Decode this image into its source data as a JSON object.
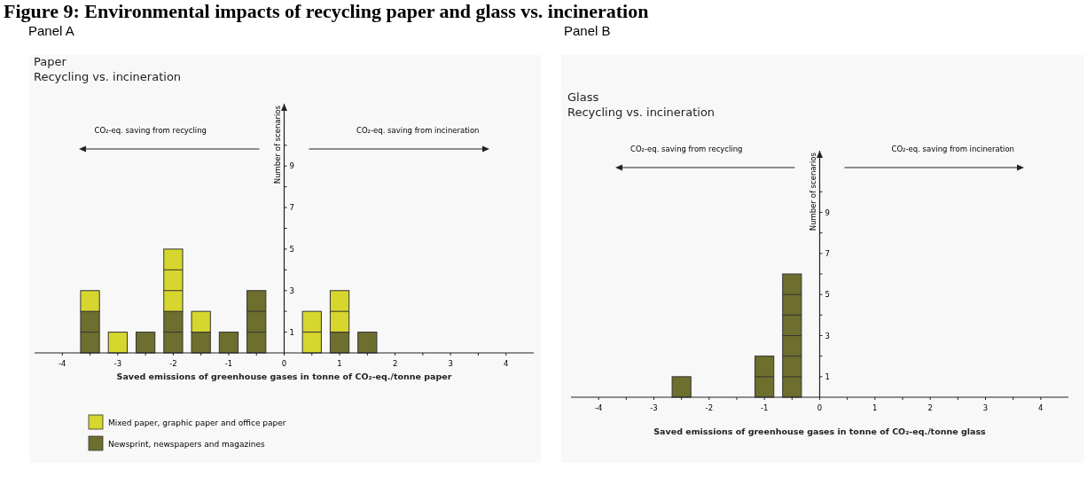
{
  "chart_data": [
    {
      "type": "bar",
      "title": "Paper",
      "subtitle": "Recycling vs. incineration",
      "xlabel": "Saved emissions of greenhouse gases in tonne of CO₂-eq./tonne paper",
      "ylabel": "Number of scenarios",
      "annotations": [
        "Figure 9: Environmental impacts of recycling paper and glass vs. incineration",
        "Panel A",
        "CO₂-eq. saving from recycling",
        "CO₂-eq. saving from incineration"
      ],
      "x": [
        -3.5,
        -3,
        -2.5,
        -2,
        -1.5,
        -1,
        -0.5,
        0.5,
        1,
        1.5
      ],
      "stacked": true,
      "series": [
        {
          "name": "Newsprint, newspapers and magazines",
          "color": "#6e6e2e",
          "values": [
            2,
            0,
            1,
            2,
            1,
            1,
            3,
            0,
            1,
            1
          ]
        },
        {
          "name": "Mixed paper, graphic paper and office paper",
          "color": "#d6d62e",
          "values": [
            1,
            1,
            0,
            3,
            1,
            0,
            0,
            2,
            2,
            0
          ]
        }
      ],
      "xlim": [
        -4.5,
        4.5
      ],
      "xticks": [
        -4,
        {
          "value": -3.5,
          "label": null
        },
        -3,
        {
          "value": -2.5,
          "label": null
        },
        -2,
        {
          "value": -1.5,
          "label": null
        },
        -1,
        {
          "value": -0.5,
          "label": null
        },
        0,
        {
          "value": 0.5,
          "label": null
        },
        1,
        {
          "value": 1.5,
          "label": null
        },
        2,
        {
          "value": 2.5,
          "label": null
        },
        3,
        {
          "value": 3.5,
          "label": null
        },
        4
      ],
      "ylim": [
        0,
        12
      ],
      "yticks": [
        1,
        {
          "value": 2,
          "label": null
        },
        3,
        {
          "value": 4,
          "label": null
        },
        5,
        {
          "value": 6,
          "label": null
        },
        7,
        {
          "value": 8,
          "label": null
        },
        9,
        {
          "value": 10,
          "label": null
        }
      ],
      "grid": false,
      "legend": "bottom left"
    },
    {
      "type": "bar",
      "title": "Glass",
      "subtitle": "Recycling vs. incineration",
      "xlabel": "Saved emissions of greenhouse gases in tonne of CO₂-eq./tonne glass",
      "ylabel": "Number of scenarios",
      "annotations": [
        "Panel B",
        "CO₂-eq. saving from recycling",
        "CO₂-eq. saving from incineration"
      ],
      "x": [
        -2.5,
        -1,
        -0.5
      ],
      "series": [
        {
          "color": "#6e6e2e",
          "values": [
            1,
            2,
            6
          ]
        }
      ],
      "xlim": [
        -4.5,
        4.5
      ],
      "xticks": [
        -4,
        {
          "value": -3.5,
          "label": null
        },
        -3,
        {
          "value": -2.5,
          "label": null
        },
        -2,
        {
          "value": -1.5,
          "label": null
        },
        -1,
        {
          "value": -0.5,
          "label": null
        },
        0,
        {
          "value": 0.5,
          "label": null
        },
        1,
        {
          "value": 1.5,
          "label": null
        },
        2,
        {
          "value": 2.5,
          "label": null
        },
        3,
        {
          "value": 3.5,
          "label": null
        },
        4
      ],
      "ylim": [
        0,
        12
      ],
      "yticks": [
        1,
        {
          "value": 2,
          "label": null
        },
        3,
        {
          "value": 4,
          "label": null
        },
        5,
        {
          "value": 6,
          "label": null
        },
        7,
        {
          "value": 8,
          "label": null
        },
        9,
        {
          "value": 10,
          "label": null
        }
      ],
      "grid": false
    }
  ]
}
